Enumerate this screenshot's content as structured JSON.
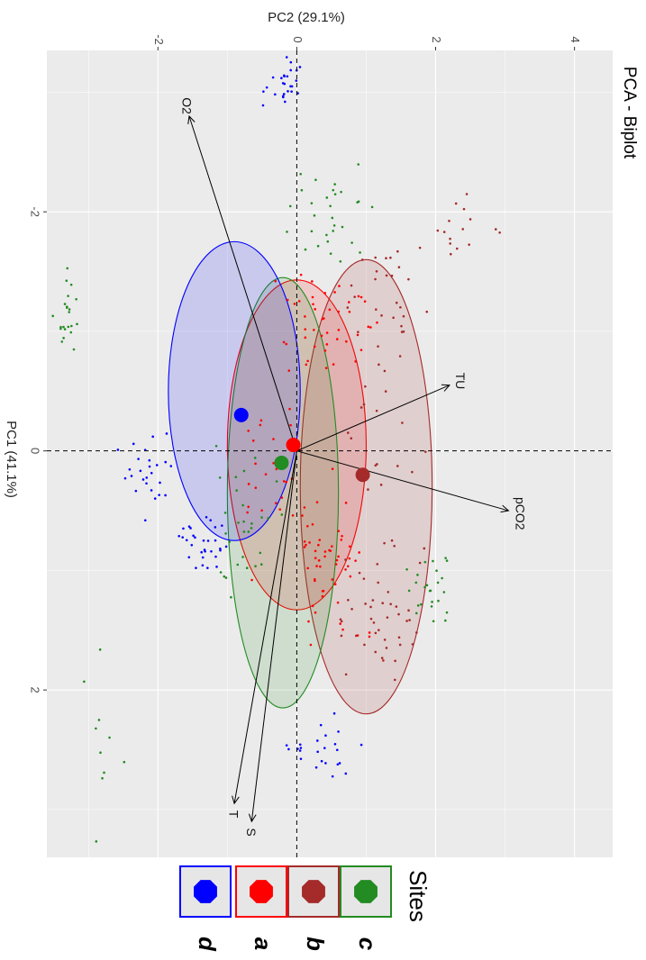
{
  "chart_data": {
    "type": "scatter",
    "title": "PCA - Biplot",
    "xlabel": "PC1 (41.1%)",
    "ylabel": "PC2 (29.1%)",
    "xlim": [
      -3.35,
      3.4
    ],
    "ylim": [
      -3.6,
      4.55
    ],
    "x_ticks": [
      -2,
      0,
      2
    ],
    "y_ticks": [
      -2,
      0,
      2,
      4
    ],
    "x_tick_labels": [
      "-2",
      "0",
      "2"
    ],
    "y_tick_labels": [
      "-2",
      "0",
      "2",
      "4"
    ],
    "grid": true,
    "legend": {
      "title": "Sites",
      "position": "bottom",
      "entries": [
        {
          "label": "c",
          "color": "#228b22"
        },
        {
          "label": "b",
          "color": "#a52a2a"
        },
        {
          "label": "a",
          "color": "#ff0000"
        },
        {
          "label": "d",
          "color": "#0000ff"
        }
      ]
    },
    "series": [
      {
        "name": "a",
        "color": "#ff0000",
        "centroid": [
          -0.05,
          -0.05
        ],
        "ellipse": {
          "cx": -0.05,
          "cy": 0.0,
          "rx": 1.38,
          "ry": 1.0,
          "angle": 0
        }
      },
      {
        "name": "b",
        "color": "#a52a2a",
        "centroid": [
          0.2,
          0.95
        ],
        "ellipse": {
          "cx": 0.3,
          "cy": 1.0,
          "rx": 1.9,
          "ry": 0.95,
          "angle": 0
        }
      },
      {
        "name": "c",
        "color": "#228b22",
        "centroid": [
          0.1,
          -0.22
        ],
        "ellipse": {
          "cx": 0.35,
          "cy": -0.2,
          "rx": 1.8,
          "ry": 0.8,
          "angle": 0
        }
      },
      {
        "name": "d",
        "color": "#0000ff",
        "centroid": [
          -0.3,
          -0.8
        ],
        "ellipse": {
          "cx": -0.5,
          "cy": -0.9,
          "rx": 1.25,
          "ry": 0.95,
          "angle": 0
        }
      }
    ],
    "variables": [
      {
        "name": "O2",
        "x": -2.8,
        "y": -1.55
      },
      {
        "name": "TU",
        "x": -0.55,
        "y": 2.2
      },
      {
        "name": "pCO2",
        "x": 0.5,
        "y": 3.05
      },
      {
        "name": "T",
        "x": 2.95,
        "y": -0.9
      },
      {
        "name": "S",
        "x": 3.1,
        "y": -0.65
      }
    ],
    "clusters": [
      {
        "series": "d",
        "cx": -3.1,
        "cy": -0.2,
        "sx": 0.15,
        "sy": 0.25,
        "n": 26
      },
      {
        "series": "d",
        "cx": 0.2,
        "cy": -2.1,
        "sx": 0.3,
        "sy": 0.3,
        "n": 26
      },
      {
        "series": "d",
        "cx": 0.75,
        "cy": -1.35,
        "sx": 0.2,
        "sy": 0.3,
        "n": 30
      },
      {
        "series": "d",
        "cx": 2.45,
        "cy": 0.3,
        "sx": 0.2,
        "sy": 0.35,
        "n": 24
      },
      {
        "series": "a",
        "cx": -1.1,
        "cy": 0.45,
        "sx": 0.3,
        "sy": 0.5,
        "n": 45
      },
      {
        "series": "a",
        "cx": 0.9,
        "cy": 0.6,
        "sx": 0.5,
        "sy": 0.45,
        "n": 55
      },
      {
        "series": "a",
        "cx": 0.1,
        "cy": -0.3,
        "sx": 0.6,
        "sy": 0.3,
        "n": 25
      },
      {
        "series": "b",
        "cx": -1.4,
        "cy": 1.3,
        "sx": 0.3,
        "sy": 0.4,
        "n": 25
      },
      {
        "series": "b",
        "cx": -1.9,
        "cy": 2.35,
        "sx": 0.25,
        "sy": 0.35,
        "n": 15
      },
      {
        "series": "b",
        "cx": 1.4,
        "cy": 1.3,
        "sx": 0.4,
        "sy": 0.5,
        "n": 45
      },
      {
        "series": "b",
        "cx": -0.4,
        "cy": 1.2,
        "sx": 0.5,
        "sy": 0.4,
        "n": 20
      },
      {
        "series": "c",
        "cx": -1.9,
        "cy": 0.4,
        "sx": 0.35,
        "sy": 0.4,
        "n": 30
      },
      {
        "series": "c",
        "cx": -1.15,
        "cy": -3.3,
        "sx": 0.3,
        "sy": 0.12,
        "n": 22
      },
      {
        "series": "c",
        "cx": 1.15,
        "cy": 1.9,
        "sx": 0.25,
        "sy": 0.25,
        "n": 25
      },
      {
        "series": "c",
        "cx": 0.7,
        "cy": -0.7,
        "sx": 0.5,
        "sy": 0.4,
        "n": 30
      },
      {
        "series": "c",
        "cx": 2.5,
        "cy": -2.7,
        "sx": 0.5,
        "sy": 0.2,
        "n": 10
      }
    ]
  }
}
